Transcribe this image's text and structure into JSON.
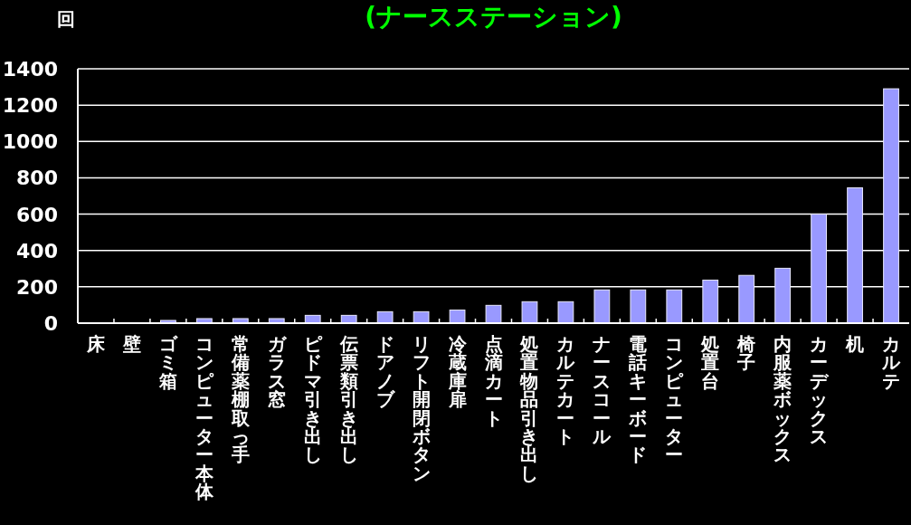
{
  "chart_data": {
    "type": "bar",
    "title": "(ナースステーション)",
    "ylabel": "回",
    "categories": [
      "床",
      "壁",
      "ゴミ箱",
      "コンピューター本体",
      "常備薬棚取っ手",
      "ガラス窓",
      "ピドマ引き出し",
      "伝票類引き出し",
      "ドアノブ",
      "リフト開閉ボタン",
      "冷蔵庫扉",
      "点滴カート",
      "処置物品引き出し",
      "カルテカート",
      "ナースコール",
      "電話キーボード",
      "コンピューター",
      "処置台",
      "椅子",
      "内服薬ボックス",
      "カーデックス",
      "机",
      "カルテ"
    ],
    "values": [
      0,
      0,
      15,
      25,
      25,
      25,
      43,
      43,
      63,
      63,
      72,
      98,
      118,
      118,
      183,
      183,
      183,
      237,
      263,
      302,
      600,
      745,
      1290
    ],
    "color": "#9999ff",
    "ylim": [
      0,
      1400
    ],
    "yticks": [
      0,
      200,
      400,
      600,
      800,
      1000,
      1200,
      1400
    ],
    "grid": "y"
  }
}
